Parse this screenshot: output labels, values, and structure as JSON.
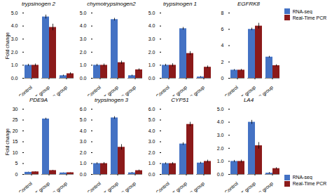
{
  "chart_data": [
    {
      "type": "bar",
      "title": "trypsinogen 2",
      "ylabel": "Fold change",
      "categories": [
        "Control",
        "CT group",
        "CS group"
      ],
      "series": [
        {
          "name": "RNA-seq",
          "color": "#4472C4",
          "values": [
            1.0,
            4.7,
            0.2
          ],
          "errors": [
            0.08,
            0.15,
            0.05
          ]
        },
        {
          "name": "Real-Time PCR",
          "color": "#8B1A1A",
          "values": [
            1.0,
            3.9,
            0.35
          ],
          "errors": [
            0.1,
            0.25,
            0.08
          ]
        }
      ],
      "ylim": [
        0,
        5
      ],
      "yticks": [
        0,
        1,
        2,
        3,
        4,
        5
      ]
    },
    {
      "type": "bar",
      "title": "chymotrypsinogen2",
      "categories": [
        "Control",
        "CT group",
        "CS group"
      ],
      "series": [
        {
          "name": "RNA-seq",
          "color": "#4472C4",
          "values": [
            1.0,
            4.5,
            0.2
          ],
          "errors": [
            0.08,
            0.1,
            0.05
          ]
        },
        {
          "name": "Real-Time PCR",
          "color": "#8B1A1A",
          "values": [
            1.0,
            1.2,
            0.65
          ],
          "errors": [
            0.1,
            0.12,
            0.08
          ]
        }
      ],
      "ylim": [
        0,
        5
      ],
      "yticks": [
        0,
        1,
        2,
        3,
        4,
        5
      ]
    },
    {
      "type": "bar",
      "title": "trypsinogen 1",
      "categories": [
        "Control",
        "CT group",
        "CS group"
      ],
      "series": [
        {
          "name": "RNA-seq",
          "color": "#4472C4",
          "values": [
            1.0,
            3.8,
            0.1
          ],
          "errors": [
            0.08,
            0.1,
            0.04
          ]
        },
        {
          "name": "Real-Time PCR",
          "color": "#8B1A1A",
          "values": [
            1.0,
            1.9,
            0.85
          ],
          "errors": [
            0.12,
            0.15,
            0.1
          ]
        }
      ],
      "ylim": [
        0,
        5
      ],
      "yticks": [
        0,
        1,
        2,
        3,
        4,
        5
      ]
    },
    {
      "type": "bar",
      "title": "EGFRK8",
      "categories": [
        "Control",
        "CT group",
        "CS group"
      ],
      "series": [
        {
          "name": "RNA-seq",
          "color": "#4472C4",
          "values": [
            1.0,
            6.0,
            2.6
          ],
          "errors": [
            0.08,
            0.15,
            0.1
          ]
        },
        {
          "name": "Real-Time PCR",
          "color": "#8B1A1A",
          "values": [
            1.0,
            6.4,
            1.55
          ],
          "errors": [
            0.1,
            0.35,
            0.12
          ]
        }
      ],
      "ylim": [
        0,
        8
      ],
      "yticks": [
        0,
        2,
        4,
        6,
        8
      ],
      "legend": "upper right"
    },
    {
      "type": "bar",
      "title": "PDE9A",
      "ylabel": "Fold change",
      "categories": [
        "Control",
        "CT group",
        "CS group"
      ],
      "series": [
        {
          "name": "RNA-seq",
          "color": "#4472C4",
          "values": [
            1.0,
            25.5,
            0.7
          ],
          "errors": [
            0.08,
            0.4,
            0.06
          ]
        },
        {
          "name": "Real-Time PCR",
          "color": "#8B1A1A",
          "values": [
            1.2,
            1.8,
            0.8
          ],
          "errors": [
            0.1,
            0.15,
            0.07
          ]
        }
      ],
      "ylim": [
        0,
        30
      ],
      "yticks": [
        0,
        5,
        10,
        15,
        20,
        25,
        30
      ]
    },
    {
      "type": "bar",
      "title": "trypsinogen 3",
      "categories": [
        "Control",
        "CT group",
        "CS group"
      ],
      "series": [
        {
          "name": "RNA-seq",
          "color": "#4472C4",
          "values": [
            1.0,
            5.2,
            0.15
          ],
          "errors": [
            0.08,
            0.12,
            0.04
          ]
        },
        {
          "name": "Real-Time PCR",
          "color": "#8B1A1A",
          "values": [
            1.0,
            2.5,
            0.35
          ],
          "errors": [
            0.1,
            0.25,
            0.06
          ]
        }
      ],
      "ylim": [
        0,
        6
      ],
      "yticks": [
        0,
        1,
        2,
        3,
        4,
        5,
        6
      ]
    },
    {
      "type": "bar",
      "title": "CYP51",
      "categories": [
        "Control",
        "CT group",
        "CS group"
      ],
      "series": [
        {
          "name": "RNA-seq",
          "color": "#4472C4",
          "values": [
            1.0,
            2.8,
            1.05
          ],
          "errors": [
            0.08,
            0.12,
            0.08
          ]
        },
        {
          "name": "Real-Time PCR",
          "color": "#8B1A1A",
          "values": [
            1.0,
            4.6,
            1.2
          ],
          "errors": [
            0.1,
            0.2,
            0.12
          ]
        }
      ],
      "ylim": [
        0,
        6
      ],
      "yticks": [
        0,
        1,
        2,
        3,
        4,
        5,
        6
      ]
    },
    {
      "type": "bar",
      "title": "LA4",
      "categories": [
        "Control",
        "CT group",
        "CS group"
      ],
      "series": [
        {
          "name": "RNA-seq",
          "color": "#4472C4",
          "values": [
            1.0,
            4.0,
            0.1
          ],
          "errors": [
            0.08,
            0.15,
            0.05
          ]
        },
        {
          "name": "Real-Time PCR",
          "color": "#8B1A1A",
          "values": [
            1.0,
            2.2,
            0.45
          ],
          "errors": [
            0.1,
            0.25,
            0.07
          ]
        }
      ],
      "ylim": [
        0,
        5
      ],
      "yticks": [
        0,
        1,
        2,
        3,
        4,
        5
      ],
      "legend": "lower right"
    }
  ]
}
